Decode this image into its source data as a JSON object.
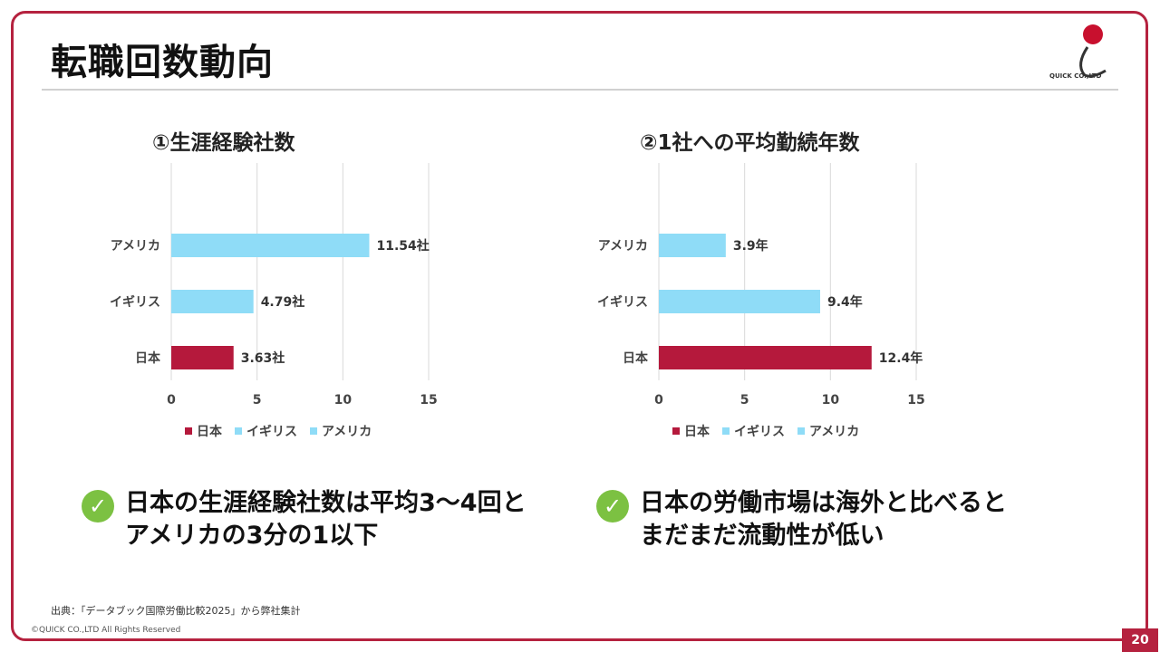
{
  "slide": {
    "title": "転職回数動向",
    "page_number": "20",
    "source": "出典：「データブック国際労働比較2025」から弊社集計",
    "copyright": "©QUICK CO.,LTD All Rights Reserved",
    "logo_text": "QUICK CO.,LTD",
    "colors": {
      "accent": "#b5223f",
      "japan": "#b5193c",
      "other": "#8fdcf7",
      "check": "#7cc142"
    }
  },
  "chart_data": [
    {
      "type": "bar",
      "orientation": "horizontal",
      "title": "①生涯経験社数",
      "categories": [
        "アメリカ",
        "イギリス",
        "日本"
      ],
      "values": [
        11.54,
        4.79,
        3.63
      ],
      "value_labels": [
        "11.54社",
        "4.79社",
        "3.63社"
      ],
      "unit": "社",
      "xlim": [
        0,
        15
      ],
      "xticks": [
        "0",
        "5",
        "10",
        "15"
      ],
      "legend": [
        "日本",
        "イギリス",
        "アメリカ"
      ],
      "legend_position": "bottom"
    },
    {
      "type": "bar",
      "orientation": "horizontal",
      "title": "②1社への平均勤続年数",
      "categories": [
        "アメリカ",
        "イギリス",
        "日本"
      ],
      "values": [
        3.9,
        9.4,
        12.4
      ],
      "value_labels": [
        "3.9年",
        "9.4年",
        "12.4年"
      ],
      "unit": "年",
      "xlim": [
        0,
        15
      ],
      "xticks": [
        "0",
        "5",
        "10",
        "15"
      ],
      "legend": [
        "日本",
        "イギリス",
        "アメリカ"
      ],
      "legend_position": "bottom"
    }
  ],
  "takeaways": [
    {
      "line1": "日本の生涯経験社数は平均3～4回と",
      "line2": "アメリカの3分の1以下"
    },
    {
      "line1": "日本の労働市場は海外と比べると",
      "line2": "まだまだ流動性が低い"
    }
  ]
}
